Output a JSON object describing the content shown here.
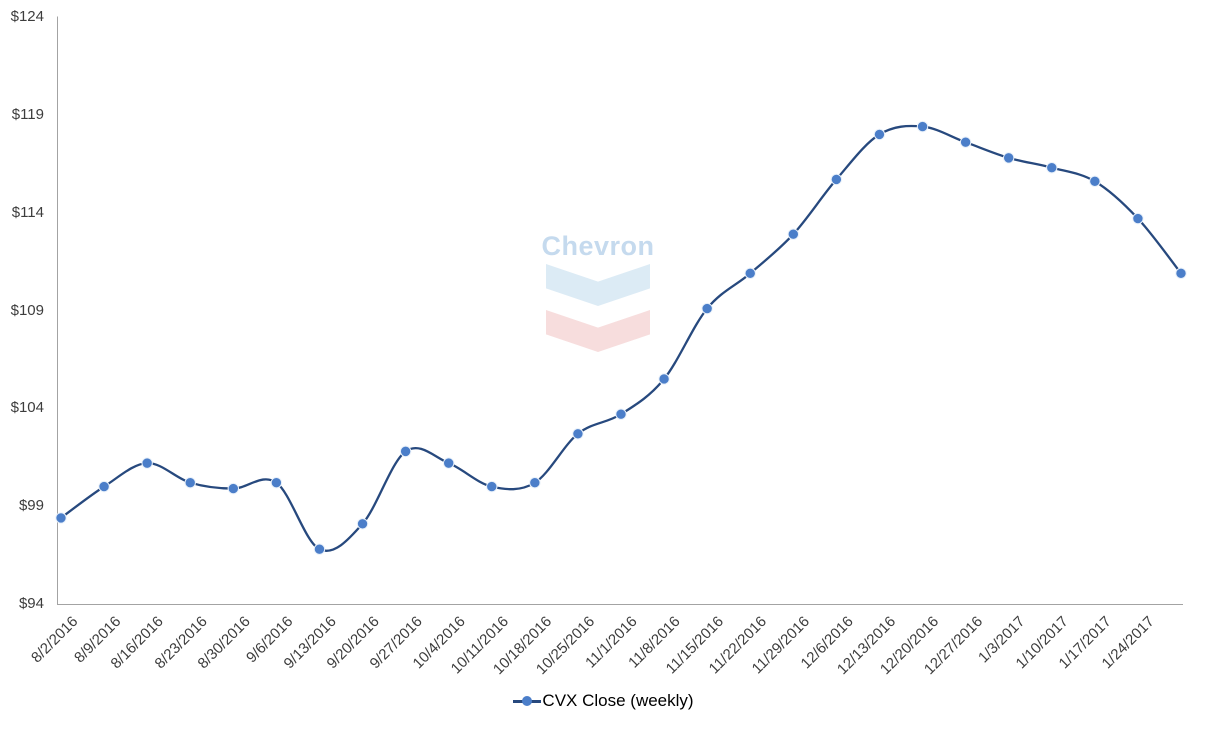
{
  "watermark": {
    "text": "Chevron"
  },
  "legend": {
    "label": "CVX Close (weekly)"
  },
  "colors": {
    "line": "#27497e",
    "marker": "#4b7ec9",
    "marker_edge": "#e9f1fa",
    "axis": "#a3a3a3",
    "tick_text": "#3d3d3d",
    "watermark_text": "#c5daee",
    "watermark_blue": "#dcebf5",
    "watermark_red": "#f7dddd"
  },
  "chart_data": {
    "type": "line",
    "title": "",
    "xlabel": "",
    "ylabel": "",
    "grid": false,
    "smooth": true,
    "marker": "circle",
    "legend_position": "bottom",
    "ylim": [
      94,
      124
    ],
    "y_ticks": [
      {
        "value": 94,
        "label": "$94"
      },
      {
        "value": 99,
        "label": "$99"
      },
      {
        "value": 104,
        "label": "$104"
      },
      {
        "value": 109,
        "label": "$109"
      },
      {
        "value": 114,
        "label": "$114"
      },
      {
        "value": 119,
        "label": "$119"
      },
      {
        "value": 124,
        "label": "$124"
      }
    ],
    "categories": [
      "8/2/2016",
      "8/9/2016",
      "8/16/2016",
      "8/23/2016",
      "8/30/2016",
      "9/6/2016",
      "9/13/2016",
      "9/20/2016",
      "9/27/2016",
      "10/4/2016",
      "10/11/2016",
      "10/18/2016",
      "10/25/2016",
      "11/1/2016",
      "11/8/2016",
      "11/15/2016",
      "11/22/2016",
      "11/29/2016",
      "12/6/2016",
      "12/13/2016",
      "12/20/2016",
      "12/27/2016",
      "1/3/2017",
      "1/10/2017",
      "1/17/2017",
      "1/24/2017",
      ""
    ],
    "series": [
      {
        "name": "CVX Close (weekly)",
        "values": [
          98.4,
          100.0,
          101.2,
          100.2,
          99.9,
          100.2,
          96.8,
          98.1,
          101.8,
          101.2,
          100.0,
          100.2,
          102.7,
          103.7,
          105.5,
          109.1,
          110.9,
          112.9,
          115.7,
          118.0,
          118.4,
          117.6,
          116.8,
          116.3,
          115.6,
          113.7,
          110.9
        ]
      }
    ]
  }
}
